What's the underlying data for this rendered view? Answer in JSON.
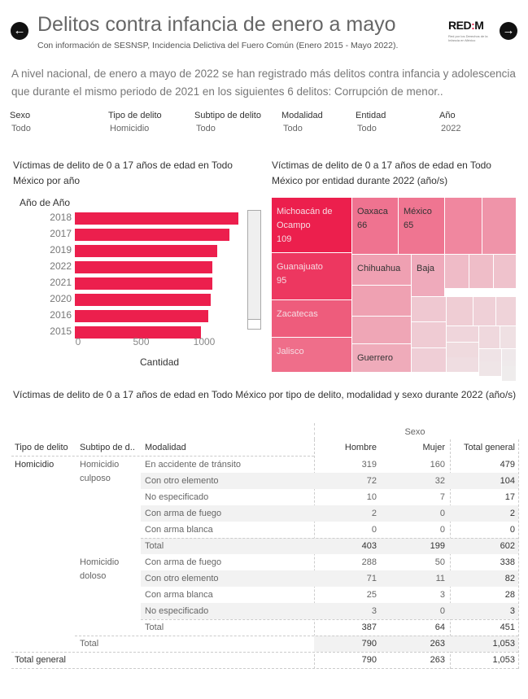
{
  "header": {
    "title": "Delitos contra infancia de enero a mayo",
    "subtitle": "Con información de SESNSP, Incidencia Delictiva del Fuero Común (Enero 2015 - Mayo 2022).",
    "logo_text": "REDIM",
    "logo_subtext": "Red por los Derechos de la Infancia en México",
    "back_icon": "arrow-left-circle-icon",
    "forward_icon": "arrow-right-circle-icon"
  },
  "summary": "A nivel nacional, de enero a mayo de 2022 se han registrado más delitos contra infancia y adolescencia que durante el mismo periodo de 2021 en los siguientes 6 delitos: Corrupción de menor..",
  "filters": [
    {
      "label": "Sexo",
      "value": "Todo"
    },
    {
      "label": "Tipo de delito",
      "value": "Homicidio"
    },
    {
      "label": "Subtipo de delito",
      "value": "Todo"
    },
    {
      "label": "Modalidad",
      "value": "Todo"
    },
    {
      "label": "Entidad",
      "value": "Todo"
    },
    {
      "label": "Año",
      "value": "2022"
    }
  ],
  "chart_data": [
    {
      "type": "bar",
      "orientation": "horizontal",
      "title": "Víctimas de delito de 0 a 17 años de edad en Todo México por año",
      "ylabel": "Año de Año",
      "xlabel": "Cantidad",
      "categories": [
        "2018",
        "2017",
        "2019",
        "2022",
        "2021",
        "2020",
        "2016",
        "2015"
      ],
      "values": [
        1252,
        1184,
        1090,
        1053,
        1055,
        1040,
        1022,
        966
      ],
      "xticks": [
        "0",
        "500",
        "1000"
      ],
      "xlim": [
        0,
        1300
      ],
      "color": "#ec1f4d"
    },
    {
      "type": "treemap",
      "title": "Víctimas de delito de 0 a 17 años de edad en Todo México por entidad durante 2022 (año/s)",
      "tiles": [
        {
          "label": "Michoacán de Ocampo",
          "value": "109",
          "color": "#ec1f4d"
        },
        {
          "label": "Guanajuato",
          "value": "95",
          "color": "#ed3760"
        },
        {
          "label": "Zacatecas",
          "value": "",
          "color": "#ee5c7c"
        },
        {
          "label": "Jalisco",
          "value": "",
          "color": "#ef6e8a"
        },
        {
          "label": "Oaxaca",
          "value": "66",
          "color": "#ef7390"
        },
        {
          "label": "México",
          "value": "65",
          "color": "#ef7591"
        },
        {
          "label": "",
          "value": "",
          "color": "#f0879f"
        },
        {
          "label": "",
          "value": "",
          "color": "#ef94a9"
        },
        {
          "label": "Chihuahua",
          "value": "",
          "color": "#efa0b2"
        },
        {
          "label": "Baja",
          "value": "",
          "color": "#efaabb"
        },
        {
          "label": "",
          "value": "",
          "color": "#efbbc7"
        },
        {
          "label": "",
          "value": "",
          "color": "#efbdc8"
        },
        {
          "label": "",
          "value": "",
          "color": "#efc2cc"
        },
        {
          "label": "",
          "value": "",
          "color": "#efa1b2"
        },
        {
          "label": "",
          "value": "",
          "color": "#efa6b6"
        },
        {
          "label": "Guerrero",
          "value": "",
          "color": "#efabba"
        },
        {
          "label": "",
          "value": "",
          "color": "#efc8d1"
        },
        {
          "label": "",
          "value": "",
          "color": "#efcbd3"
        },
        {
          "label": "",
          "value": "",
          "color": "#efced6"
        },
        {
          "label": "",
          "value": "",
          "color": "#efcdd4"
        },
        {
          "label": "",
          "value": "",
          "color": "#efd0d7"
        },
        {
          "label": "",
          "value": "",
          "color": "#efd3d9"
        },
        {
          "label": "",
          "value": "",
          "color": "#efd5db"
        },
        {
          "label": "",
          "value": "",
          "color": "#efdade"
        },
        {
          "label": "",
          "value": "",
          "color": "#efdde1"
        },
        {
          "label": "",
          "value": "",
          "color": "#efd8dd"
        },
        {
          "label": "",
          "value": "",
          "color": "#efe0e3"
        },
        {
          "label": "",
          "value": "",
          "color": "#efe3e6"
        },
        {
          "label": "",
          "value": "",
          "color": "#efe5e7"
        },
        {
          "label": "",
          "value": "",
          "color": "#efe8ea"
        },
        {
          "label": "",
          "value": "",
          "color": "#efeaeb"
        },
        {
          "label": "",
          "value": "",
          "color": "#efecec"
        }
      ]
    },
    {
      "type": "table",
      "title": "Víctimas de delito de 0 a 17 años de edad en Todo México por tipo de delito, modalidad y sexo durante 2022 (año/s)",
      "group_header": "Sexo",
      "columns": [
        "Tipo de delito",
        "Subtipo de d..",
        "Modalidad",
        "Hombre",
        "Mujer",
        "Total general"
      ],
      "rows": [
        {
          "tipo": "Homicidio",
          "subtipo": "Homicidio culposo",
          "modalidad": "En accidente de tránsito",
          "hombre": "319",
          "mujer": "160",
          "total": "479"
        },
        {
          "tipo": "",
          "subtipo": "",
          "modalidad": "Con otro elemento",
          "hombre": "72",
          "mujer": "32",
          "total": "104"
        },
        {
          "tipo": "",
          "subtipo": "",
          "modalidad": "No especificado",
          "hombre": "10",
          "mujer": "7",
          "total": "17"
        },
        {
          "tipo": "",
          "subtipo": "",
          "modalidad": "Con arma de fuego",
          "hombre": "2",
          "mujer": "0",
          "total": "2"
        },
        {
          "tipo": "",
          "subtipo": "",
          "modalidad": "Con arma blanca",
          "hombre": "0",
          "mujer": "0",
          "total": "0"
        },
        {
          "tipo": "",
          "subtipo": "",
          "modalidad": "Total",
          "hombre": "403",
          "mujer": "199",
          "total": "602"
        },
        {
          "tipo": "",
          "subtipo": "Homicidio doloso",
          "modalidad": "Con arma de fuego",
          "hombre": "288",
          "mujer": "50",
          "total": "338"
        },
        {
          "tipo": "",
          "subtipo": "",
          "modalidad": "Con otro elemento",
          "hombre": "71",
          "mujer": "11",
          "total": "82"
        },
        {
          "tipo": "",
          "subtipo": "",
          "modalidad": "Con arma blanca",
          "hombre": "25",
          "mujer": "3",
          "total": "28"
        },
        {
          "tipo": "",
          "subtipo": "",
          "modalidad": "No especificado",
          "hombre": "3",
          "mujer": "0",
          "total": "3"
        },
        {
          "tipo": "",
          "subtipo": "",
          "modalidad": "Total",
          "hombre": "387",
          "mujer": "64",
          "total": "451"
        },
        {
          "tipo": "",
          "subtipo": "Total",
          "modalidad": "",
          "hombre": "790",
          "mujer": "263",
          "total": "1,053"
        },
        {
          "tipo": "Total general",
          "subtipo": "",
          "modalidad": "",
          "hombre": "790",
          "mujer": "263",
          "total": "1,053"
        }
      ]
    }
  ]
}
